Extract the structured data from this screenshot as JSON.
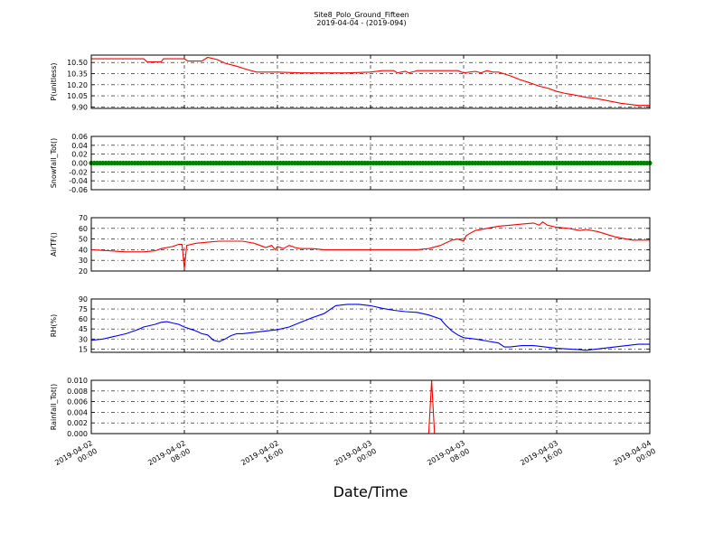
{
  "figure": {
    "title": "Site8_Polo_Ground_Fifteen",
    "subtitle": "2019-04-04 - (2019-094)",
    "xlabel": "Date/Time",
    "x_ticks": [
      "2019-04-02\n00:00",
      "2019-04-02\n08:00",
      "2019-04-02\n16:00",
      "2019-04-03\n00:00",
      "2019-04-03\n08:00",
      "2019-04-03\n16:00",
      "2019-04-04\n00:00"
    ],
    "x_tick_hours": [
      0,
      8,
      16,
      24,
      32,
      40,
      48
    ]
  },
  "chart_data": [
    {
      "type": "line",
      "ylabel": "P(unitless)",
      "ylim": [
        9.88,
        10.6
      ],
      "yticks": [
        9.9,
        10.05,
        10.2,
        10.35,
        10.5
      ],
      "ytick_labels": [
        "9.90",
        "10.05",
        "10.20",
        "10.35",
        "10.50"
      ],
      "grid": true,
      "series": [
        {
          "color": "#ff0000",
          "x": [
            0,
            4.5,
            4.8,
            6.0,
            6.2,
            8.0,
            8.3,
            9.5,
            10.0,
            10.8,
            11.5,
            12.5,
            13.3,
            14.2,
            15.0,
            16.0,
            18.0,
            22.0,
            24.0,
            25.0,
            26.0,
            26.3,
            27.0,
            27.3,
            27.8,
            28.0,
            30.0,
            31.5,
            32.0,
            33.0,
            33.5,
            34.0,
            34.5,
            35.0,
            36.0,
            36.8,
            37.6,
            38.5,
            39.3,
            40.0,
            40.8,
            41.6,
            42.5,
            43.5,
            44.5,
            45.5,
            47.0,
            48.0
          ],
          "values": [
            10.55,
            10.55,
            10.51,
            10.51,
            10.55,
            10.55,
            10.52,
            10.52,
            10.57,
            10.54,
            10.49,
            10.45,
            10.41,
            10.37,
            10.37,
            10.37,
            10.36,
            10.36,
            10.37,
            10.39,
            10.39,
            10.36,
            10.38,
            10.36,
            10.38,
            10.39,
            10.39,
            10.39,
            10.36,
            10.38,
            10.36,
            10.39,
            10.37,
            10.37,
            10.32,
            10.27,
            10.23,
            10.18,
            10.15,
            10.11,
            10.08,
            10.06,
            10.03,
            10.01,
            9.98,
            9.95,
            9.92,
            9.92
          ]
        }
      ]
    },
    {
      "type": "scatter",
      "ylabel": "Snowfall_Tot()",
      "ylim": [
        -0.06,
        0.06
      ],
      "yticks": [
        -0.06,
        -0.04,
        -0.02,
        0.0,
        0.02,
        0.04,
        0.06
      ],
      "ytick_labels": [
        "-0.06",
        "-0.04",
        "-0.02",
        "0.00",
        "0.02",
        "0.04",
        "0.06"
      ],
      "grid": true,
      "series": [
        {
          "color": "#008000",
          "x_range": [
            0,
            48
          ],
          "x_step": 0.25,
          "constant_value": 0.0
        }
      ]
    },
    {
      "type": "line",
      "ylabel": "AirTF()",
      "ylim": [
        20,
        70
      ],
      "yticks": [
        20,
        30,
        40,
        50,
        60,
        70
      ],
      "ytick_labels": [
        "20",
        "30",
        "40",
        "50",
        "60",
        "70"
      ],
      "grid": true,
      "series": [
        {
          "color": "#ff0000",
          "x": [
            0,
            1.5,
            3.0,
            4.5,
            5.5,
            6.0,
            7.0,
            7.5,
            7.8,
            8.0,
            8.2,
            9.0,
            10.0,
            11.0,
            12.0,
            13.0,
            14.0,
            14.5,
            15.0,
            15.5,
            15.8,
            16.0,
            16.5,
            17.0,
            17.3,
            17.5,
            18.0,
            19.0,
            20.0,
            22.0,
            24.0,
            26.0,
            28.0,
            29.0,
            30.0,
            31.0,
            31.5,
            32.0,
            32.2,
            32.5,
            33.0,
            34.0,
            35.0,
            36.0,
            37.0,
            38.0,
            38.5,
            38.8,
            39.2,
            40.0,
            41.0,
            42.0,
            42.5,
            43.5,
            45.0,
            46.5,
            48.0
          ],
          "values": [
            40,
            39,
            38,
            38,
            39,
            41,
            43,
            45,
            45,
            22,
            44,
            46,
            47,
            48,
            48,
            48,
            46,
            44,
            42,
            44,
            40,
            43,
            41,
            44,
            43,
            42,
            41,
            41,
            40,
            40,
            40,
            40,
            40,
            41,
            44,
            49,
            50,
            48,
            53,
            55,
            58,
            60,
            62,
            63,
            64,
            65,
            63,
            66,
            63,
            61,
            60,
            58,
            59,
            57,
            52,
            49,
            49
          ]
        }
      ]
    },
    {
      "type": "line",
      "ylabel": "RH(%)",
      "ylim": [
        10,
        90
      ],
      "yticks": [
        15,
        30,
        45,
        60,
        75,
        90
      ],
      "ytick_labels": [
        "15",
        "30",
        "45",
        "60",
        "75",
        "90"
      ],
      "grid": true,
      "series": [
        {
          "color": "#0000ff",
          "x": [
            0,
            1.0,
            2.0,
            3.0,
            4.0,
            4.5,
            5.0,
            5.5,
            6.0,
            6.5,
            7.0,
            7.5,
            8.0,
            8.5,
            9.0,
            9.5,
            10.0,
            10.5,
            11.0,
            11.5,
            12.0,
            12.5,
            13.0,
            14.0,
            15.0,
            16.0,
            17.0,
            18.0,
            19.0,
            20.0,
            21.0,
            22.0,
            23.0,
            24.0,
            25.0,
            26.0,
            27.0,
            28.0,
            29.0,
            30.0,
            30.5,
            31.0,
            31.5,
            32.0,
            33.0,
            34.0,
            35.0,
            35.5,
            36.0,
            37.0,
            38.0,
            39.0,
            40.0,
            41.0,
            42.0,
            42.5,
            43.0,
            44.0,
            45.0,
            46.0,
            47.0,
            48.0
          ],
          "values": [
            28,
            30,
            34,
            38,
            44,
            48,
            50,
            52,
            55,
            56,
            54,
            52,
            48,
            45,
            42,
            38,
            36,
            28,
            26,
            30,
            35,
            38,
            38,
            40,
            42,
            44,
            48,
            55,
            62,
            68,
            80,
            82,
            82,
            80,
            76,
            73,
            71,
            70,
            66,
            60,
            50,
            42,
            36,
            32,
            30,
            27,
            24,
            18,
            18,
            20,
            20,
            18,
            16,
            15,
            14,
            13,
            14,
            16,
            18,
            20,
            22,
            22
          ]
        }
      ]
    },
    {
      "type": "line",
      "ylabel": "Rainfall_Tot()",
      "ylim": [
        0,
        0.01
      ],
      "yticks": [
        0.0,
        0.002,
        0.004,
        0.006,
        0.008,
        0.01
      ],
      "ytick_labels": [
        "0.000",
        "0.002",
        "0.004",
        "0.006",
        "0.008",
        "0.010"
      ],
      "grid": true,
      "series": [
        {
          "color": "#ff0000",
          "x": [
            0,
            29.0,
            29.25,
            29.5,
            48
          ],
          "values": [
            0,
            0,
            0.01,
            0,
            0
          ]
        }
      ]
    }
  ]
}
